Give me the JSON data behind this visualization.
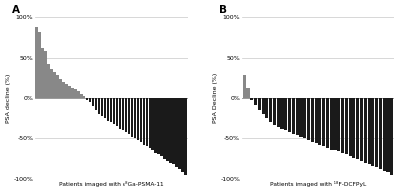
{
  "panel_A_label": "A",
  "panel_B_label": "B",
  "xlabel_A": "Patients imaged with ₆⁸Ga-PSMA-11",
  "xlabel_B": "Patients imaged with ¹⁸F-DCFPyL",
  "ylabel_A": "PSA decline (%)",
  "ylabel_B": "PSA Decline (%)",
  "ylim": [
    -100,
    100
  ],
  "yticks": [
    -100,
    -50,
    0,
    50,
    100
  ],
  "ytick_labels": [
    "-100%",
    "-50%",
    "0%",
    "50%",
    "100%"
  ],
  "color_positive": "#888888",
  "color_negative": "#1a1a1a",
  "values_A": [
    88,
    82,
    62,
    58,
    42,
    36,
    32,
    28,
    24,
    20,
    18,
    15,
    13,
    11,
    9,
    5,
    2,
    -2,
    -5,
    -10,
    -15,
    -20,
    -22,
    -25,
    -28,
    -30,
    -32,
    -35,
    -38,
    -40,
    -42,
    -45,
    -48,
    -50,
    -52,
    -55,
    -58,
    -60,
    -62,
    -65,
    -68,
    -70,
    -72,
    -75,
    -78,
    -80,
    -82,
    -85,
    -88,
    -92,
    -96
  ],
  "values_B": [
    28,
    12,
    -2,
    -8,
    -15,
    -20,
    -25,
    -30,
    -33,
    -36,
    -38,
    -40,
    -42,
    -44,
    -46,
    -48,
    -50,
    -52,
    -54,
    -56,
    -58,
    -60,
    -62,
    -64,
    -65,
    -66,
    -68,
    -70,
    -72,
    -74,
    -76,
    -78,
    -80,
    -82,
    -84,
    -86,
    -88,
    -90,
    -92,
    -95
  ],
  "background_color": "#ffffff",
  "grid_color": "#c8c8c8",
  "bar_width": 0.82,
  "figsize": [
    4.0,
    1.93
  ],
  "dpi": 100,
  "fontsize_ticks": 4.5,
  "fontsize_label": 4.5,
  "fontsize_xlabel": 4.2,
  "fontsize_panel": 7.5
}
